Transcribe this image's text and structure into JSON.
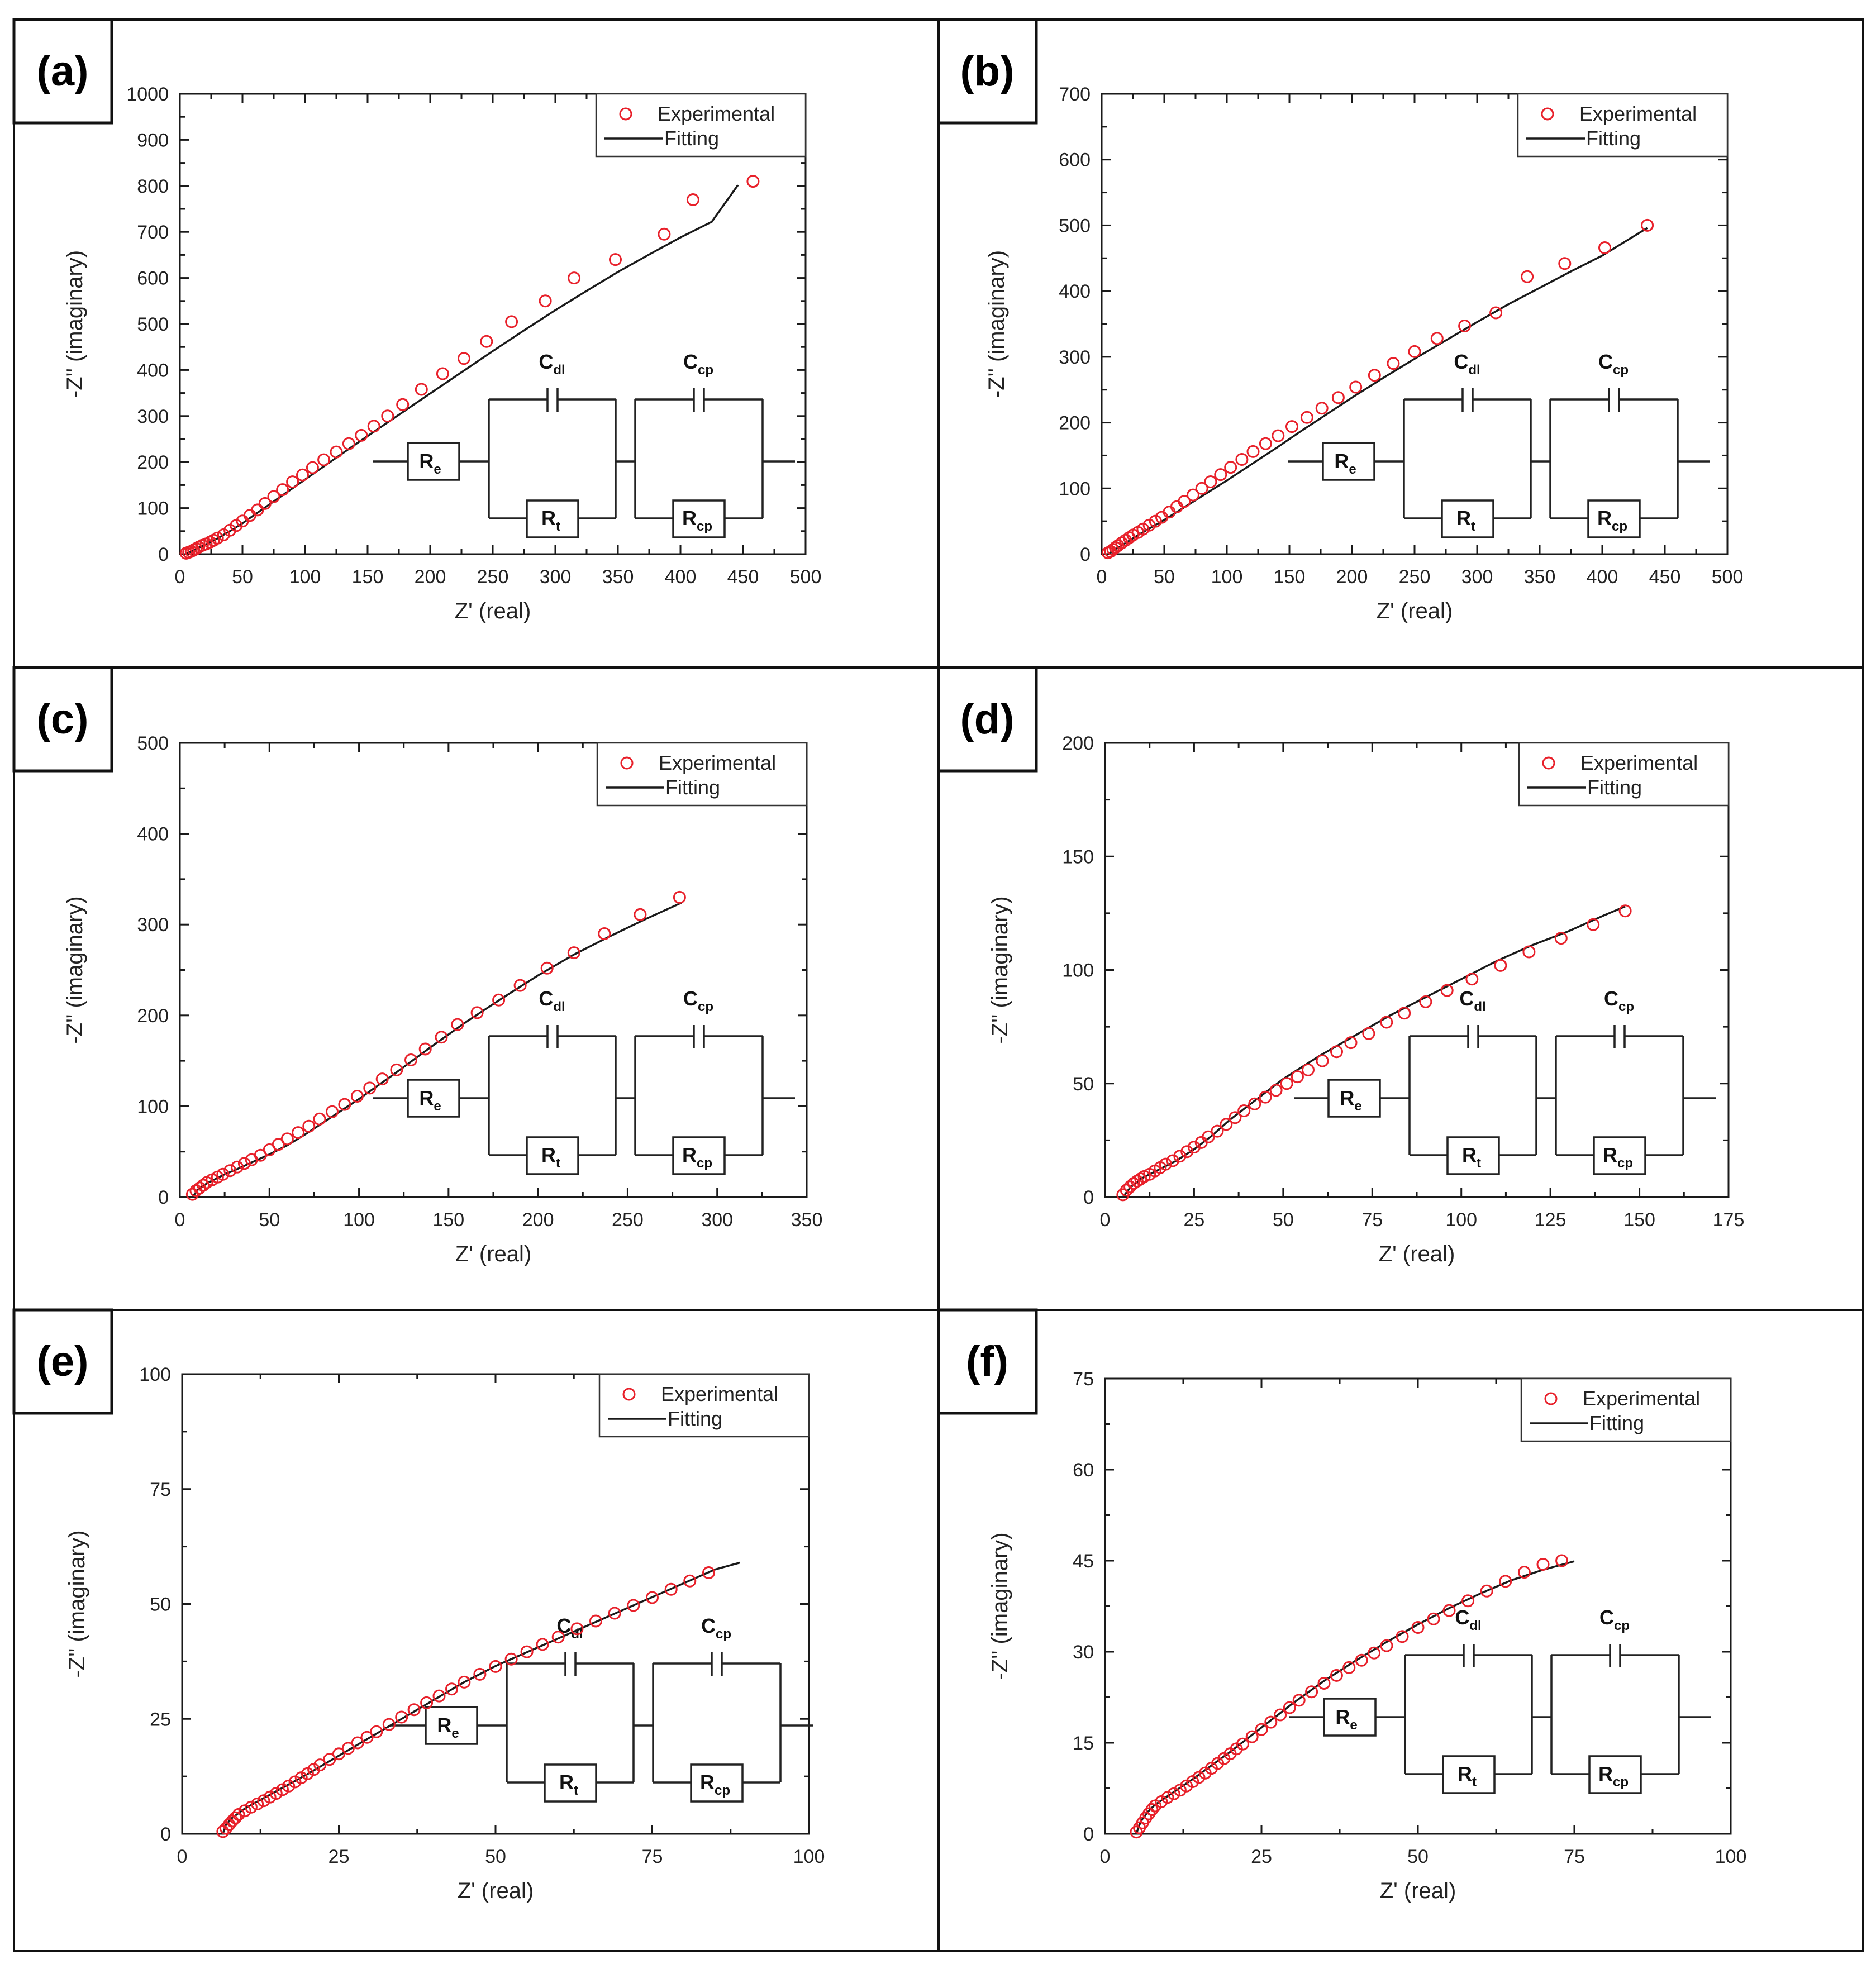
{
  "figure": {
    "colors": {
      "experimental": "#e8202a",
      "fitting": "#1a1a1a",
      "frame": "#111111"
    }
  },
  "legend": {
    "experimental": "Experimental",
    "fitting": "Fitting"
  },
  "circuit": {
    "re": {
      "main": "R",
      "sub": "e"
    },
    "cdl": {
      "main": "C",
      "sub": "dl"
    },
    "rt": {
      "main": "R",
      "sub": "t"
    },
    "ccp": {
      "main": "C",
      "sub": "cp"
    },
    "rcp": {
      "main": "R",
      "sub": "cp"
    }
  },
  "chart_data": [
    {
      "tag": "(a)",
      "type": "scatter",
      "title": "",
      "xlabel": "Z' (real)",
      "ylabel": "-Z'' (imaginary)",
      "xlim": [
        0,
        500
      ],
      "ylim": [
        0,
        1000
      ],
      "xticks": [
        0,
        50,
        100,
        150,
        200,
        250,
        300,
        350,
        400,
        450,
        500
      ],
      "yticks": [
        0,
        100,
        200,
        300,
        400,
        500,
        600,
        700,
        800,
        900,
        1000
      ],
      "legend_position": "top-right",
      "series": [
        {
          "name": "Experimental",
          "style": "circle",
          "x": [
            5,
            7,
            9,
            11,
            13,
            15,
            18,
            21,
            24,
            27,
            30,
            35,
            40,
            45,
            50,
            56,
            62,
            68,
            75,
            82,
            90,
            98,
            106,
            115,
            125,
            135,
            145,
            155,
            166,
            178,
            193,
            210,
            227,
            245,
            265,
            292,
            315,
            348,
            387,
            410,
            458
          ],
          "y": [
            2,
            4,
            6,
            9,
            12,
            15,
            19,
            22,
            26,
            30,
            35,
            42,
            52,
            62,
            72,
            84,
            96,
            110,
            125,
            140,
            157,
            172,
            188,
            205,
            222,
            240,
            258,
            278,
            300,
            325,
            358,
            392,
            425,
            462,
            505,
            550,
            600,
            640,
            695,
            770,
            810
          ]
        },
        {
          "name": "Fitting",
          "style": "line",
          "x": [
            5,
            10,
            15,
            20,
            25,
            30,
            40,
            50,
            60,
            70,
            80,
            90,
            100,
            120,
            140,
            160,
            180,
            200,
            225,
            250,
            275,
            300,
            325,
            350,
            375,
            400,
            425,
            446
          ],
          "y": [
            0,
            7,
            14,
            20,
            27,
            34,
            50,
            67,
            86,
            105,
            124,
            143,
            162,
            200,
            238,
            275,
            312,
            349,
            395,
            441,
            486,
            530,
            572,
            613,
            651,
            688,
            722,
            802
          ]
        }
      ]
    },
    {
      "tag": "(b)",
      "type": "scatter",
      "title": "",
      "xlabel": "Z' (real)",
      "ylabel": "-Z'' (imaginary)",
      "xlim": [
        0,
        500
      ],
      "ylim": [
        0,
        700
      ],
      "xticks": [
        0,
        50,
        100,
        150,
        200,
        250,
        300,
        350,
        400,
        450,
        500
      ],
      "yticks": [
        0,
        100,
        200,
        300,
        400,
        500,
        600,
        700
      ],
      "legend_position": "top-right",
      "series": [
        {
          "name": "Experimental",
          "style": "circle",
          "x": [
            5,
            7,
            9,
            11,
            13,
            16,
            19,
            22,
            25,
            29,
            33,
            38,
            43,
            48,
            54,
            60,
            66,
            73,
            80,
            87,
            95,
            103,
            112,
            121,
            131,
            141,
            152,
            164,
            176,
            189,
            203,
            218,
            233,
            250,
            268,
            290,
            315,
            340,
            370,
            402,
            436
          ],
          "y": [
            2,
            4,
            7,
            10,
            13,
            17,
            21,
            25,
            29,
            33,
            38,
            44,
            50,
            56,
            64,
            72,
            80,
            90,
            100,
            110,
            121,
            132,
            144,
            156,
            168,
            180,
            194,
            208,
            222,
            238,
            254,
            272,
            290,
            308,
            328,
            347,
            367,
            422,
            442,
            466,
            500
          ]
        },
        {
          "name": "Fitting",
          "style": "line",
          "x": [
            5,
            10,
            20,
            30,
            40,
            50,
            60,
            80,
            100,
            120,
            140,
            160,
            180,
            200,
            225,
            250,
            275,
            300,
            325,
            350,
            375,
            400,
            436
          ],
          "y": [
            0,
            6,
            18,
            30,
            41,
            52,
            64,
            88,
            112,
            137,
            162,
            188,
            213,
            238,
            268,
            297,
            325,
            353,
            380,
            405,
            430,
            454,
            496
          ]
        }
      ]
    },
    {
      "tag": "(c)",
      "type": "scatter",
      "title": "",
      "xlabel": "Z' (real)",
      "ylabel": "-Z'' (imaginary)",
      "xlim": [
        0,
        350
      ],
      "ylim": [
        0,
        500
      ],
      "xticks": [
        0,
        50,
        100,
        150,
        200,
        250,
        300,
        350
      ],
      "yticks": [
        0,
        100,
        200,
        300,
        400,
        500
      ],
      "legend_position": "top-right",
      "series": [
        {
          "name": "Experimental",
          "style": "circle",
          "x": [
            7,
            9,
            11,
            13,
            15,
            18,
            21,
            24,
            28,
            32,
            36,
            40,
            45,
            50,
            55,
            60,
            66,
            72,
            78,
            85,
            92,
            99,
            106,
            113,
            121,
            129,
            137,
            146,
            155,
            166,
            178,
            190,
            205,
            220,
            237,
            257,
            279
          ],
          "y": [
            3,
            7,
            10,
            13,
            16,
            19,
            22,
            25,
            29,
            33,
            37,
            41,
            46,
            52,
            58,
            64,
            71,
            78,
            86,
            94,
            102,
            111,
            120,
            130,
            140,
            151,
            163,
            176,
            190,
            203,
            217,
            233,
            252,
            269,
            290,
            311,
            330
          ]
        },
        {
          "name": "Fitting",
          "style": "line",
          "x": [
            7,
            10,
            15,
            20,
            25,
            30,
            40,
            50,
            60,
            70,
            80,
            90,
            100,
            120,
            140,
            160,
            180,
            200,
            220,
            240,
            260,
            280
          ],
          "y": [
            0,
            8,
            15,
            20,
            25,
            29,
            38,
            47,
            57,
            69,
            82,
            95,
            108,
            136,
            165,
            193,
            219,
            244,
            267,
            287,
            306,
            324
          ]
        }
      ]
    },
    {
      "tag": "(d)",
      "type": "scatter",
      "title": "",
      "xlabel": "Z' (real)",
      "ylabel": "-Z'' (imaginary)",
      "xlim": [
        0,
        175
      ],
      "ylim": [
        0,
        200
      ],
      "xticks": [
        0,
        25,
        50,
        75,
        100,
        125,
        150,
        175
      ],
      "yticks": [
        0,
        50,
        100,
        150,
        200
      ],
      "legend_position": "top-right",
      "series": [
        {
          "name": "Experimental",
          "style": "circle",
          "x": [
            5,
            6,
            7,
            8,
            9,
            10,
            11,
            12.5,
            14,
            15.5,
            17,
            19,
            21,
            23,
            25,
            27,
            29,
            31.5,
            34,
            36.5,
            39,
            42,
            45,
            48,
            51,
            54,
            57,
            61,
            65,
            69,
            74,
            79,
            84,
            90,
            96,
            103,
            111,
            119,
            128,
            137,
            146
          ],
          "y": [
            1,
            3,
            4.5,
            6,
            7,
            8,
            9,
            10,
            11.5,
            13,
            14.5,
            16,
            18,
            20,
            22,
            24,
            26.5,
            29,
            32,
            35,
            38,
            41,
            44,
            47,
            50,
            53,
            56,
            60,
            64,
            68,
            72,
            77,
            81,
            86,
            91,
            96,
            102,
            108,
            114,
            120,
            126
          ]
        },
        {
          "name": "Fitting",
          "style": "line",
          "x": [
            5,
            7,
            10,
            15,
            20,
            25,
            30,
            35,
            40,
            50,
            60,
            70,
            80,
            90,
            100,
            110,
            120,
            130,
            140,
            146
          ],
          "y": [
            0,
            4,
            8,
            12,
            16,
            21,
            27,
            34,
            40,
            52,
            62,
            71,
            80,
            88,
            96,
            104,
            111,
            117,
            124,
            128
          ]
        }
      ]
    },
    {
      "tag": "(e)",
      "type": "scatter",
      "title": "",
      "xlabel": "Z' (real)",
      "ylabel": "-Z'' (imaginary)",
      "xlim": [
        0,
        100
      ],
      "ylim": [
        0,
        100
      ],
      "xticks": [
        0,
        25,
        50,
        75,
        100
      ],
      "yticks": [
        0,
        25,
        50,
        75,
        100
      ],
      "legend_position": "top-right",
      "series": [
        {
          "name": "Experimental",
          "style": "circle",
          "x": [
            6.5,
            7,
            7.5,
            8,
            8.5,
            9,
            10,
            11,
            12,
            13,
            14,
            15,
            16,
            17,
            18,
            19,
            20,
            21,
            22,
            23.5,
            25,
            26.5,
            28,
            29.5,
            31,
            33,
            35,
            37,
            39,
            41,
            43,
            45,
            47.5,
            50,
            52.5,
            55,
            57.5,
            60,
            63,
            66,
            69,
            72,
            75,
            78,
            81,
            84
          ],
          "y": [
            0.5,
            1.2,
            2,
            2.8,
            3.5,
            4.2,
            5,
            5.8,
            6.5,
            7.2,
            8,
            8.8,
            9.6,
            10.4,
            11.3,
            12.2,
            13.1,
            14,
            15,
            16.2,
            17.4,
            18.6,
            19.8,
            21,
            22.2,
            23.8,
            25.4,
            27,
            28.5,
            30,
            31.5,
            33,
            34.7,
            36.4,
            38,
            39.6,
            41.2,
            42.8,
            44.6,
            46.3,
            48,
            49.7,
            51.4,
            53.2,
            55,
            56.8
          ]
        },
        {
          "name": "Fitting",
          "style": "line",
          "x": [
            6.5,
            7,
            8,
            9,
            10,
            12,
            14,
            16,
            18,
            20,
            25,
            30,
            35,
            40,
            45,
            50,
            55,
            60,
            65,
            70,
            75,
            80,
            85,
            89
          ],
          "y": [
            0,
            2,
            3.5,
            4.5,
            5.5,
            7,
            8.5,
            10,
            11.5,
            13,
            17,
            21,
            25,
            29,
            33,
            36.5,
            39.5,
            42.5,
            45.5,
            48.5,
            51.5,
            54.5,
            57.5,
            59
          ]
        }
      ]
    },
    {
      "tag": "(f)",
      "type": "scatter",
      "title": "",
      "xlabel": "Z' (real)",
      "ylabel": "-Z'' (imaginary)",
      "xlim": [
        0,
        100
      ],
      "ylim": [
        0,
        75
      ],
      "xticks": [
        0,
        25,
        50,
        75,
        100
      ],
      "yticks": [
        0,
        15,
        30,
        45,
        60,
        75
      ],
      "legend_position": "top-right",
      "series": [
        {
          "name": "Experimental",
          "style": "circle",
          "x": [
            5,
            5.5,
            6,
            6.5,
            7,
            7.5,
            8,
            9,
            10,
            11,
            12,
            13,
            14,
            15,
            16,
            17,
            18,
            19,
            20,
            21,
            22,
            23.5,
            25,
            26.5,
            28,
            29.5,
            31,
            33,
            35,
            37,
            39,
            41,
            43,
            45,
            47.5,
            50,
            52.5,
            55,
            58,
            61,
            64,
            67,
            70,
            73
          ],
          "y": [
            0.3,
            1,
            1.8,
            2.6,
            3.3,
            4,
            4.6,
            5.3,
            6,
            6.6,
            7.2,
            7.9,
            8.6,
            9.3,
            10,
            10.8,
            11.6,
            12.4,
            13.2,
            14,
            14.8,
            16,
            17.2,
            18.4,
            19.6,
            20.8,
            22,
            23.4,
            24.8,
            26.1,
            27.4,
            28.6,
            29.8,
            31,
            32.5,
            34,
            35.4,
            36.8,
            38.4,
            40,
            41.6,
            43.1,
            44.4,
            45
          ]
        },
        {
          "name": "Fitting",
          "style": "line",
          "x": [
            5,
            5.5,
            6,
            7,
            8,
            10,
            12,
            14,
            16,
            18,
            20,
            25,
            30,
            35,
            40,
            45,
            50,
            55,
            60,
            65,
            70,
            75
          ],
          "y": [
            0,
            1.5,
            2.5,
            3.8,
            4.8,
            6.2,
            7.6,
            9,
            10.5,
            12,
            13.5,
            17.5,
            21.5,
            25.2,
            28.5,
            31.6,
            34.5,
            37.2,
            39.6,
            41.8,
            43.5,
            44.9
          ]
        }
      ]
    }
  ]
}
